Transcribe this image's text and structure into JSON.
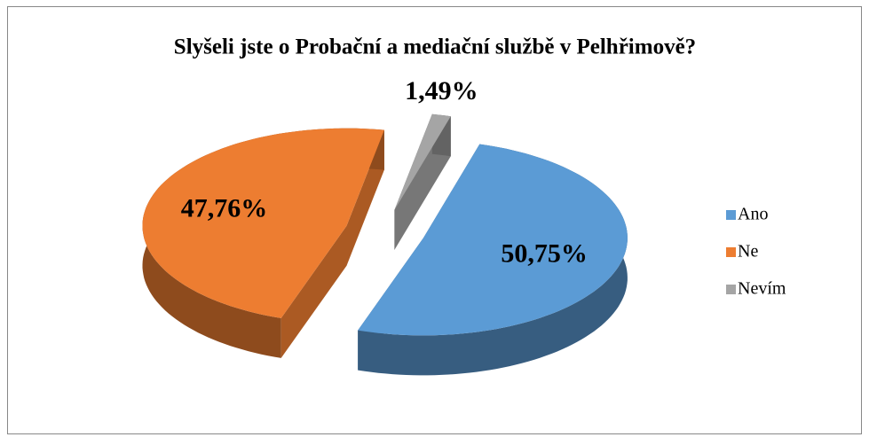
{
  "chart_data": {
    "type": "pie",
    "title": "Slyšeli jste o Probační a mediační službě v Pelhřimově?",
    "categories": [
      "Ano",
      "Ne",
      "Nevím"
    ],
    "values": [
      50.75,
      47.76,
      1.49
    ],
    "value_labels": [
      "50,75%",
      "47,76%",
      "1,49%"
    ],
    "colors": [
      "#5b9bd5",
      "#ed7d31",
      "#a5a5a5"
    ],
    "legend": "right"
  }
}
